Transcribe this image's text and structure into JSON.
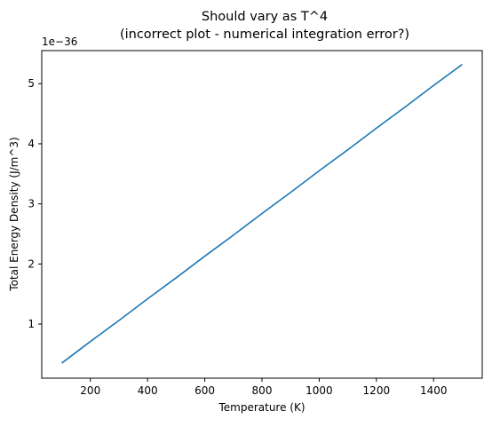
{
  "chart_data": {
    "type": "line",
    "title_lines": [
      "Should vary as T^4",
      "(incorrect plot - numerical integration error?)"
    ],
    "xlabel": "Temperature (K)",
    "ylabel": "Total Energy Density (J/m^3)",
    "y_offset_label": "1e−36",
    "y_scale_factor": 1e-36,
    "xlim": [
      30,
      1570
    ],
    "ylim": [
      0.1,
      5.55
    ],
    "x_ticks": [
      200,
      400,
      600,
      800,
      1000,
      1200,
      1400
    ],
    "x_tick_labels": [
      "200",
      "400",
      "600",
      "800",
      "1000",
      "1200",
      "1400"
    ],
    "y_ticks": [
      1,
      2,
      3,
      4,
      5
    ],
    "y_tick_labels": [
      "1",
      "2",
      "3",
      "4",
      "5"
    ],
    "grid": false,
    "series": [
      {
        "color": "#1f77b4",
        "x": [
          100,
          200,
          300,
          400,
          500,
          600,
          700,
          800,
          900,
          1000,
          1100,
          1200,
          1300,
          1400,
          1500
        ],
        "values": [
          0.35,
          0.71,
          1.06,
          1.42,
          1.77,
          2.13,
          2.48,
          2.84,
          3.19,
          3.55,
          3.9,
          4.26,
          4.61,
          4.97,
          5.32
        ]
      }
    ]
  }
}
